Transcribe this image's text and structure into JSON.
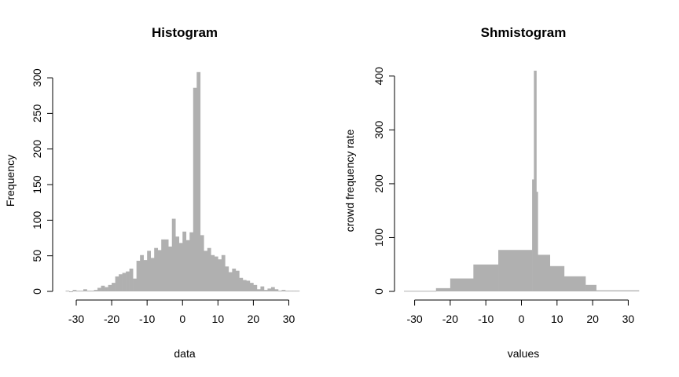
{
  "chart_data": [
    {
      "type": "bar",
      "title": "Histogram",
      "xlabel": "data",
      "ylabel": "Frequency",
      "xlim": [
        -34,
        33
      ],
      "ylim": [
        0,
        310
      ],
      "x_ticks": [
        -30,
        -20,
        -10,
        0,
        10,
        20,
        30
      ],
      "y_ticks": [
        0,
        50,
        100,
        150,
        200,
        250,
        300
      ],
      "bin_width": 1,
      "bins": [
        {
          "x0": -33,
          "x1": -32,
          "y": 1
        },
        {
          "x0": -32,
          "x1": -31,
          "y": 0
        },
        {
          "x0": -31,
          "x1": -30,
          "y": 2
        },
        {
          "x0": -30,
          "x1": -29,
          "y": 1
        },
        {
          "x0": -29,
          "x1": -28,
          "y": 1
        },
        {
          "x0": -28,
          "x1": -27,
          "y": 3
        },
        {
          "x0": -27,
          "x1": -26,
          "y": 1
        },
        {
          "x0": -26,
          "x1": -25,
          "y": 1
        },
        {
          "x0": -25,
          "x1": -24,
          "y": 2
        },
        {
          "x0": -24,
          "x1": -23,
          "y": 5
        },
        {
          "x0": -23,
          "x1": -22,
          "y": 8
        },
        {
          "x0": -22,
          "x1": -21,
          "y": 6
        },
        {
          "x0": -21,
          "x1": -20,
          "y": 9
        },
        {
          "x0": -20,
          "x1": -19,
          "y": 12
        },
        {
          "x0": -19,
          "x1": -18,
          "y": 21
        },
        {
          "x0": -18,
          "x1": -17,
          "y": 24
        },
        {
          "x0": -17,
          "x1": -16,
          "y": 26
        },
        {
          "x0": -16,
          "x1": -15,
          "y": 28
        },
        {
          "x0": -15,
          "x1": -14,
          "y": 32
        },
        {
          "x0": -14,
          "x1": -13,
          "y": 18
        },
        {
          "x0": -13,
          "x1": -12,
          "y": 43
        },
        {
          "x0": -12,
          "x1": -11,
          "y": 51
        },
        {
          "x0": -11,
          "x1": -10,
          "y": 44
        },
        {
          "x0": -10,
          "x1": -9,
          "y": 57
        },
        {
          "x0": -9,
          "x1": -8,
          "y": 47
        },
        {
          "x0": -8,
          "x1": -7,
          "y": 61
        },
        {
          "x0": -7,
          "x1": -6,
          "y": 58
        },
        {
          "x0": -6,
          "x1": -5,
          "y": 73
        },
        {
          "x0": -5,
          "x1": -4,
          "y": 73
        },
        {
          "x0": -4,
          "x1": -3,
          "y": 63
        },
        {
          "x0": -3,
          "x1": -2,
          "y": 102
        },
        {
          "x0": -2,
          "x1": -1,
          "y": 77
        },
        {
          "x0": -1,
          "x1": 0,
          "y": 68
        },
        {
          "x0": 0,
          "x1": 1,
          "y": 84
        },
        {
          "x0": 1,
          "x1": 2,
          "y": 72
        },
        {
          "x0": 2,
          "x1": 3,
          "y": 83
        },
        {
          "x0": 3,
          "x1": 4,
          "y": 286
        },
        {
          "x0": 4,
          "x1": 5,
          "y": 308
        },
        {
          "x0": 5,
          "x1": 6,
          "y": 79
        },
        {
          "x0": 6,
          "x1": 7,
          "y": 57
        },
        {
          "x0": 7,
          "x1": 8,
          "y": 61
        },
        {
          "x0": 8,
          "x1": 9,
          "y": 51
        },
        {
          "x0": 9,
          "x1": 10,
          "y": 49
        },
        {
          "x0": 10,
          "x1": 11,
          "y": 45
        },
        {
          "x0": 11,
          "x1": 12,
          "y": 51
        },
        {
          "x0": 12,
          "x1": 13,
          "y": 35
        },
        {
          "x0": 13,
          "x1": 14,
          "y": 27
        },
        {
          "x0": 14,
          "x1": 15,
          "y": 32
        },
        {
          "x0": 15,
          "x1": 16,
          "y": 29
        },
        {
          "x0": 16,
          "x1": 17,
          "y": 19
        },
        {
          "x0": 17,
          "x1": 18,
          "y": 16
        },
        {
          "x0": 18,
          "x1": 19,
          "y": 15
        },
        {
          "x0": 19,
          "x1": 20,
          "y": 12
        },
        {
          "x0": 20,
          "x1": 21,
          "y": 9
        },
        {
          "x0": 21,
          "x1": 22,
          "y": 3
        },
        {
          "x0": 22,
          "x1": 23,
          "y": 7
        },
        {
          "x0": 23,
          "x1": 24,
          "y": 2
        },
        {
          "x0": 24,
          "x1": 25,
          "y": 4
        },
        {
          "x0": 25,
          "x1": 26,
          "y": 6
        },
        {
          "x0": 26,
          "x1": 27,
          "y": 3
        },
        {
          "x0": 27,
          "x1": 28,
          "y": 1
        },
        {
          "x0": 28,
          "x1": 29,
          "y": 2
        },
        {
          "x0": 29,
          "x1": 30,
          "y": 1
        },
        {
          "x0": 30,
          "x1": 31,
          "y": 1
        },
        {
          "x0": 31,
          "x1": 32,
          "y": 1
        },
        {
          "x0": 32,
          "x1": 33,
          "y": 1
        }
      ],
      "bar_color": "#b0b0b0",
      "grid": false
    },
    {
      "type": "bar",
      "title": "Shmistogram",
      "xlabel": "values",
      "ylabel": "crowd frequency rate",
      "xlim": [
        -33,
        33
      ],
      "ylim": [
        0,
        410
      ],
      "x_ticks": [
        -30,
        -20,
        -10,
        0,
        10,
        20,
        30
      ],
      "y_ticks": [
        0,
        100,
        200,
        300,
        400
      ],
      "bins": [
        {
          "x0": -33,
          "x1": -24,
          "y": 1
        },
        {
          "x0": -24,
          "x1": -20,
          "y": 6
        },
        {
          "x0": -20,
          "x1": -13.5,
          "y": 24
        },
        {
          "x0": -13.5,
          "x1": -6.5,
          "y": 50
        },
        {
          "x0": -6.5,
          "x1": 3,
          "y": 77
        },
        {
          "x0": 3,
          "x1": 3.5,
          "y": 208
        },
        {
          "x0": 3.5,
          "x1": 4.2,
          "y": 410
        },
        {
          "x0": 4.2,
          "x1": 4.6,
          "y": 185
        },
        {
          "x0": 4.6,
          "x1": 8,
          "y": 68
        },
        {
          "x0": 8,
          "x1": 12,
          "y": 47
        },
        {
          "x0": 12,
          "x1": 18,
          "y": 28
        },
        {
          "x0": 18,
          "x1": 21,
          "y": 12
        },
        {
          "x0": 21,
          "x1": 33,
          "y": 2
        }
      ],
      "bar_color": "#b0b0b0",
      "grid": false
    }
  ]
}
